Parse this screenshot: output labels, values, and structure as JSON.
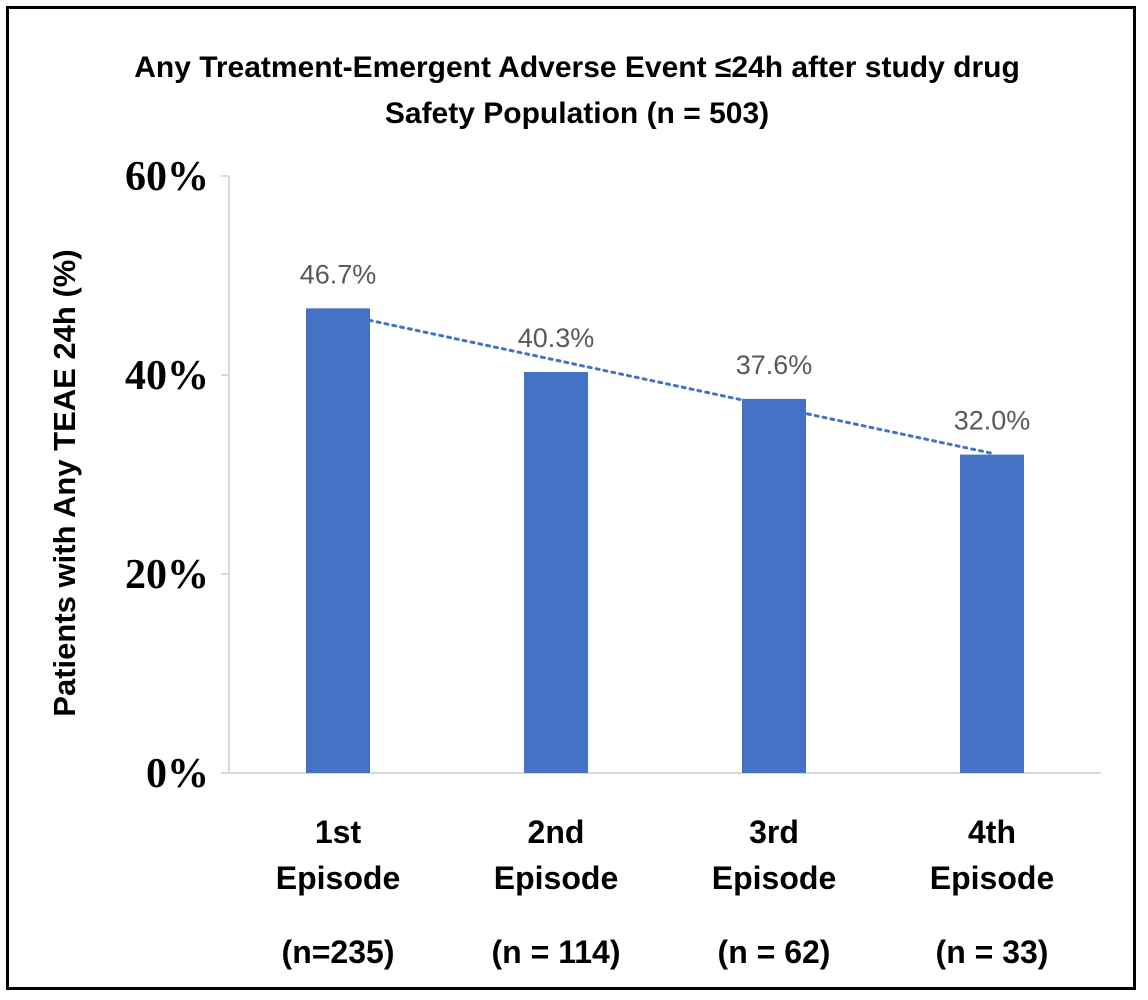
{
  "chart_data": {
    "type": "bar",
    "title": "Any Treatment-Emergent Adverse Event ≤24h after study drug",
    "subtitle": "Safety Population (n = 503)",
    "ylabel": "Patients with Any TEAE 24h (%)",
    "xlabel": "",
    "ylim": [
      0,
      60
    ],
    "yticks": [
      0,
      20,
      40,
      60
    ],
    "ytick_labels": [
      "0%",
      "20%",
      "40%",
      "60%"
    ],
    "categories": [
      {
        "line1": "1st",
        "line2": "Episode",
        "n": "(n=235)"
      },
      {
        "line1": "2nd",
        "line2": "Episode",
        "n": "(n = 114)"
      },
      {
        "line1": "3rd",
        "line2": "Episode",
        "n": "(n = 62)"
      },
      {
        "line1": "4th",
        "line2": "Episode",
        "n": "(n = 33)"
      }
    ],
    "values": [
      46.7,
      40.3,
      37.6,
      32.0
    ],
    "data_labels": [
      "46.7%",
      "40.3%",
      "37.6%",
      "32.0%"
    ],
    "trendline": "linear, dotted",
    "grid": false,
    "bar_color": "#4472C4",
    "trend_color": "#4472C4"
  }
}
